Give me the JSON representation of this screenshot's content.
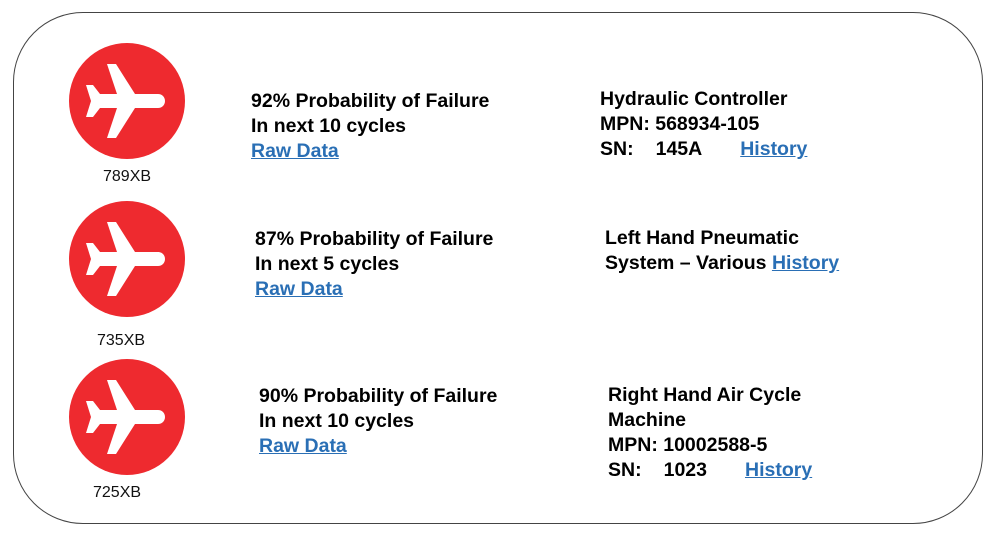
{
  "alerts": [
    {
      "tail": "789XB",
      "probability": "92% Probability of Failure",
      "horizon": "In next 10 cycles",
      "raw_data_label": "Raw Data",
      "component_lines": [
        "Hydraulic Controller",
        "MPN: 568934-105"
      ],
      "sn_label": "SN:",
      "sn_value": "145A",
      "history_label": "History"
    },
    {
      "tail": "735XB",
      "probability": "87% Probability of Failure",
      "horizon": "In next 5 cycles",
      "raw_data_label": "Raw Data",
      "component_line1": "Left Hand Pneumatic",
      "component_line2": "System – Various",
      "history_label": "History"
    },
    {
      "tail": "725XB",
      "probability": "90% Probability of Failure",
      "horizon": "In next 10 cycles",
      "raw_data_label": "Raw Data",
      "component_lines": [
        "Right Hand Air Cycle",
        "Machine",
        "MPN: 10002588-5"
      ],
      "sn_label": "SN:",
      "sn_value": "1023",
      "history_label": "History"
    }
  ],
  "icon": "airplane-icon",
  "colors": {
    "icon_bg": "#ee2a2f",
    "link": "#2a6fb5"
  }
}
